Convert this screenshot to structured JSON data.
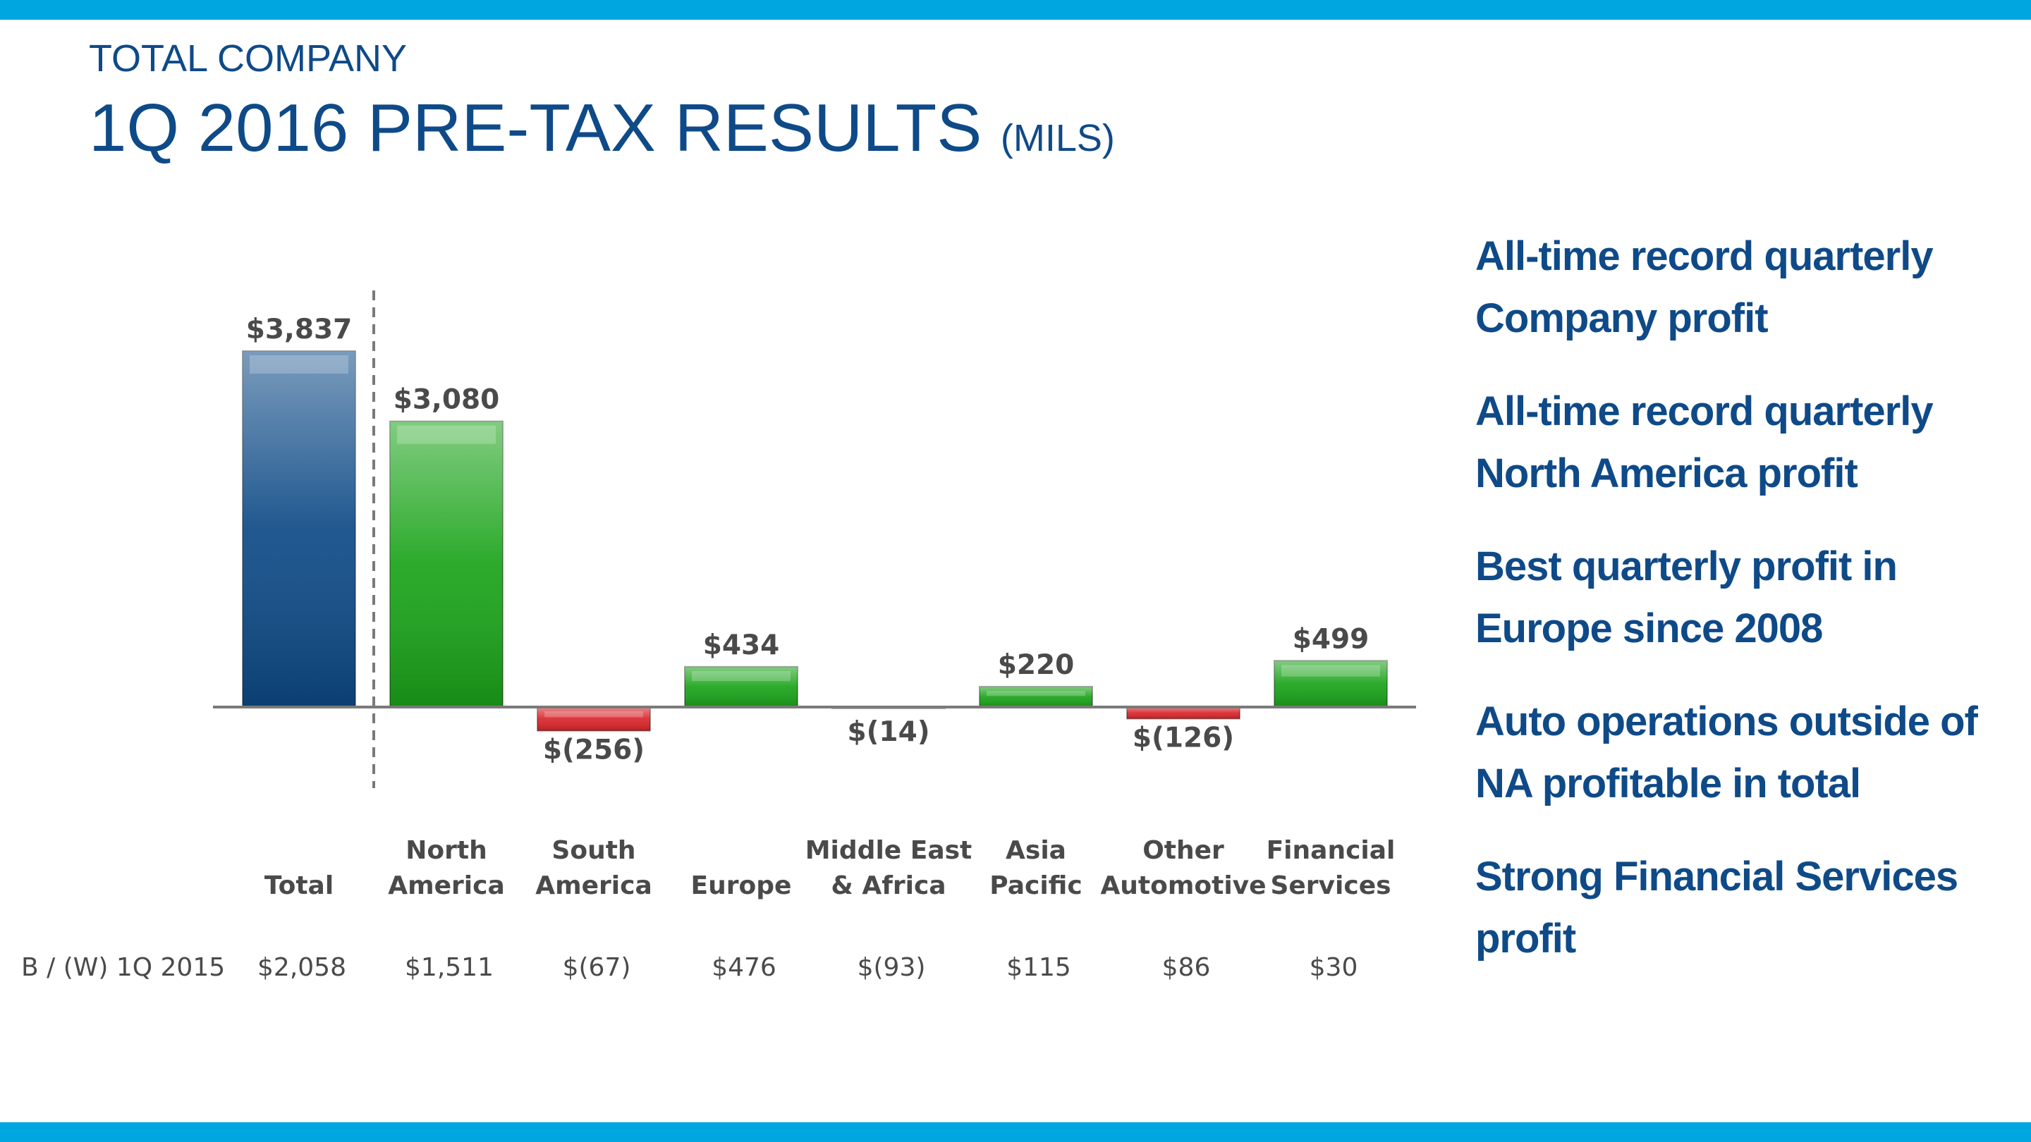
{
  "header": {
    "kicker": "TOTAL COMPANY",
    "title": "1Q 2016 PRE-TAX RESULTS",
    "units": "(MILS)"
  },
  "chart_data": {
    "type": "bar",
    "categories": [
      [
        "Total"
      ],
      [
        "North",
        "America"
      ],
      [
        "South",
        "America"
      ],
      [
        "Europe"
      ],
      [
        "Middle East",
        "& Africa"
      ],
      [
        "Asia",
        "Pacific"
      ],
      [
        "Other",
        "Automotive"
      ],
      [
        "Financial",
        "Services"
      ]
    ],
    "values": [
      3837,
      3080,
      -256,
      434,
      -14,
      220,
      -126,
      499
    ],
    "value_labels": [
      "$3,837",
      "$3,080",
      "$(256)",
      "$434",
      "$(14)",
      "$220",
      "$(126)",
      "$499"
    ],
    "bar_colors": [
      "#0d4a86",
      "#1aa319",
      "#d9252a",
      "#1aa319",
      "#d9252a",
      "#1aa319",
      "#d9252a",
      "#1aa319"
    ],
    "comparison_row": {
      "label": "B / (W) 1Q 2015",
      "values": [
        "$2,058",
        "$1,511",
        "$(67)",
        "$476",
        "$(93)",
        "$115",
        "$86",
        "$30"
      ]
    },
    "ylim": [
      -256,
      3837
    ],
    "grid": false,
    "legend": "none"
  },
  "highlights": [
    "All-time record quarterly Company profit",
    "All-time record quarterly North America profit",
    "Best quarterly profit in Europe since 2008",
    "Auto operations outside of NA profitable in total",
    "Strong Financial Services profit"
  ],
  "colors": {
    "accent": "#00a6e0",
    "brand": "#0f4a88",
    "positive": "#1aa319",
    "negative": "#d9252a",
    "total": "#0d4a86"
  }
}
